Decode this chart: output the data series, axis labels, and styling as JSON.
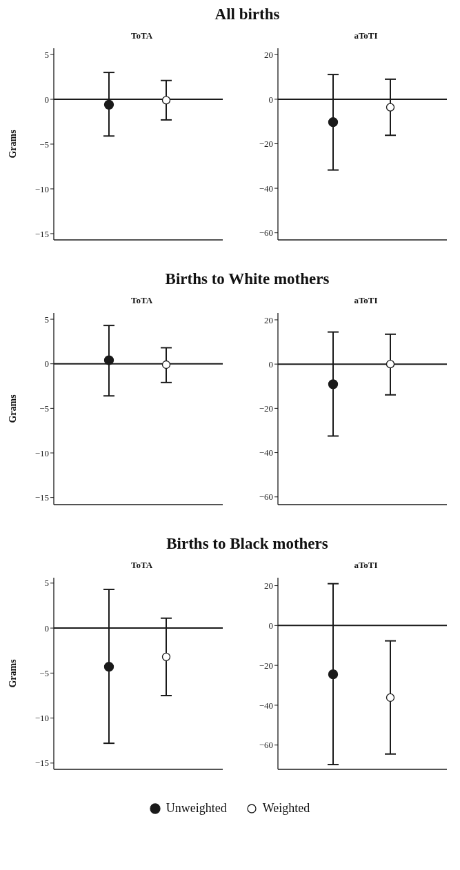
{
  "chart_data": [
    {
      "type": "scatter",
      "title": "All births",
      "subtitle": "ToTA",
      "ylabel": "Grams",
      "categories": [
        null,
        null
      ],
      "ylim": [
        -15.7,
        5.7
      ],
      "yticks": [
        {
          "value": -15,
          "label": "−15"
        },
        {
          "value": -10,
          "label": "−10"
        },
        {
          "value": -5,
          "label": "−5"
        },
        0,
        5
      ],
      "tick_labels": "y",
      "grid": false,
      "marker": "circle",
      "ref_lines": [
        {
          "axis": "y",
          "value": 0
        }
      ],
      "series": [
        {
          "color": "#1a1a1a",
          "values": [
            -0.6,
            null
          ],
          "errors": [
            [
              -4.1,
              3.0
            ],
            null
          ]
        },
        {
          "color": "#1a1a1a",
          "values": [
            null,
            -0.1
          ],
          "errors": [
            null,
            [
              -2.3,
              2.1
            ]
          ]
        }
      ]
    },
    {
      "type": "scatter",
      "subtitle": "aToTI",
      "categories": [
        null,
        null
      ],
      "ylim": [
        -63.2,
        22.9
      ],
      "yticks": [
        {
          "value": -60,
          "label": "−60"
        },
        {
          "value": -40,
          "label": "−40"
        },
        {
          "value": -20,
          "label": "−20"
        },
        0,
        20
      ],
      "tick_labels": "y",
      "grid": false,
      "marker": "circle",
      "ref_lines": [
        {
          "axis": "y",
          "value": 0
        }
      ],
      "series": [
        {
          "color": "#1a1a1a",
          "values": [
            -10.3,
            null
          ],
          "errors": [
            [
              -31.8,
              11.1
            ],
            null
          ]
        },
        {
          "color": "#1a1a1a",
          "values": [
            null,
            -3.6
          ],
          "errors": [
            null,
            [
              -16.2,
              9.0
            ]
          ]
        }
      ]
    },
    {
      "type": "scatter",
      "title": "Births to White mothers",
      "subtitle": "ToTA",
      "ylabel": "Grams",
      "categories": [
        null,
        null
      ],
      "ylim": [
        -15.8,
        5.7
      ],
      "yticks": [
        {
          "value": -15,
          "label": "−15"
        },
        {
          "value": -10,
          "label": "−10"
        },
        {
          "value": -5,
          "label": "−5"
        },
        0,
        5
      ],
      "tick_labels": "y",
      "grid": false,
      "marker": "circle",
      "ref_lines": [
        {
          "axis": "y",
          "value": 0
        }
      ],
      "series": [
        {
          "color": "#1a1a1a",
          "values": [
            0.4,
            null
          ],
          "errors": [
            [
              -3.6,
              4.3
            ],
            null
          ]
        },
        {
          "color": "#1a1a1a",
          "values": [
            null,
            -0.1
          ],
          "errors": [
            null,
            [
              -2.1,
              1.8
            ]
          ]
        }
      ]
    },
    {
      "type": "scatter",
      "subtitle": "aToTI",
      "categories": [
        null,
        null
      ],
      "ylim": [
        -63.5,
        23.1
      ],
      "yticks": [
        {
          "value": -60,
          "label": "−60"
        },
        {
          "value": -40,
          "label": "−40"
        },
        {
          "value": -20,
          "label": "−20"
        },
        0,
        20
      ],
      "tick_labels": "y",
      "grid": false,
      "marker": "circle",
      "ref_lines": [
        {
          "axis": "y",
          "value": 0
        }
      ],
      "series": [
        {
          "color": "#1a1a1a",
          "values": [
            -9.1,
            null
          ],
          "errors": [
            [
              -32.5,
              14.5
            ],
            null
          ]
        },
        {
          "color": "#1a1a1a",
          "values": [
            null,
            0
          ],
          "errors": [
            null,
            [
              -13.9,
              13.5
            ]
          ]
        }
      ]
    },
    {
      "type": "scatter",
      "title": "Births to Black mothers",
      "subtitle": "ToTA",
      "ylabel": "Grams",
      "categories": [
        null,
        null
      ],
      "ylim": [
        -15.7,
        5.6
      ],
      "yticks": [
        {
          "value": -15,
          "label": "−15"
        },
        {
          "value": -10,
          "label": "−10"
        },
        {
          "value": -5,
          "label": "−5"
        },
        0,
        5
      ],
      "tick_labels": "y",
      "grid": false,
      "marker": "circle",
      "ref_lines": [
        {
          "axis": "y",
          "value": 0
        }
      ],
      "series": [
        {
          "color": "#1a1a1a",
          "values": [
            -4.3,
            null
          ],
          "errors": [
            [
              -12.8,
              4.3
            ],
            null
          ]
        },
        {
          "color": "#1a1a1a",
          "values": [
            null,
            -3.2
          ],
          "errors": [
            null,
            [
              -7.5,
              1.1
            ]
          ]
        }
      ]
    },
    {
      "type": "scatter",
      "subtitle": "aToTI",
      "categories": [
        null,
        null
      ],
      "ylim": [
        -72.2,
        24.0
      ],
      "yticks": [
        {
          "value": -60,
          "label": "−60"
        },
        {
          "value": -40,
          "label": "−40"
        },
        {
          "value": -20,
          "label": "−20"
        },
        0,
        20
      ],
      "tick_labels": "y",
      "grid": false,
      "marker": "circle",
      "legend": "bottom",
      "ref_lines": [
        {
          "axis": "y",
          "value": 0
        }
      ],
      "series": [
        {
          "name": "Unweighted",
          "color": "#1a1a1a",
          "values": [
            -24.5,
            null
          ],
          "errors": [
            [
              -69.8,
              21.0
            ],
            null
          ]
        },
        {
          "name": "Weighted",
          "color": "#1a1a1a",
          "values": [
            null,
            -36.2
          ],
          "errors": [
            null,
            [
              -64.5,
              -7.7
            ]
          ]
        }
      ]
    }
  ]
}
